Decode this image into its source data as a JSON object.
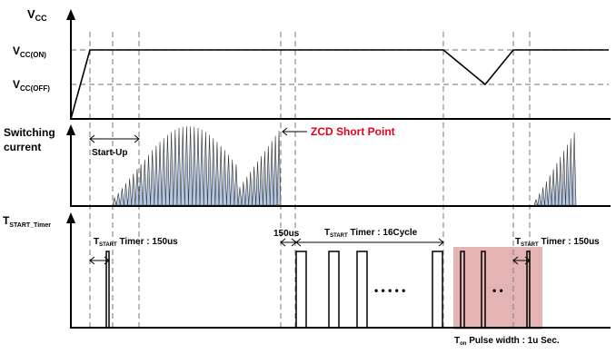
{
  "labels": {
    "vcc": "V",
    "vcc_sub": "CC",
    "vcc_on": "V",
    "vcc_on_sub": "CC(ON)",
    "vcc_off": "V",
    "vcc_off_sub": "CC(OFF)",
    "switching_current_1": "Switching",
    "switching_current_2": "current",
    "tstart_timer": "T",
    "tstart_timer_sub": "START_Timer",
    "startup": "Start-Up",
    "zcd_short_point": "ZCD Short Point",
    "tstart_150us_left_t": "T",
    "tstart_150us_left_sub": "START",
    "tstart_150us_left_rest": " Timer : 150us",
    "label_150us": "150us",
    "tstart_16cycle_t": "T",
    "tstart_16cycle_sub": "START",
    "tstart_16cycle_rest": " Timer : 16Cycle",
    "tstart_150us_right_t": "T",
    "tstart_150us_right_sub": "START",
    "tstart_150us_right_rest": " Timer : 150us",
    "dots_long": "• • • • •",
    "dots_short": "• •",
    "ton_t": "T",
    "ton_sub": "on",
    "ton_rest": " Pulse width : 1u Sec."
  },
  "colors": {
    "highlight": "#e3b4b3",
    "current_fill": "#b6c9e4",
    "accent_red": "#e8001c",
    "dash_gray": "#8c8c8c"
  }
}
